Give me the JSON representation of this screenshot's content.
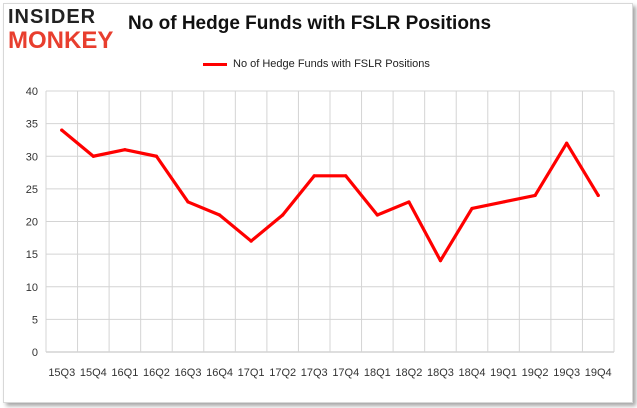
{
  "logo": {
    "top_text": "INSIDER",
    "bottom_text": "MONKEY"
  },
  "colors": {
    "series": "#ff0000",
    "logo_red": "#e83e2e",
    "grid": "#d4d4d4"
  },
  "chart_data": {
    "type": "line",
    "title": "No of Hedge Funds with FSLR Positions",
    "xlabel": "",
    "ylabel": "",
    "ylim": [
      0,
      40
    ],
    "yticks": [
      0,
      5,
      10,
      15,
      20,
      25,
      30,
      35,
      40
    ],
    "grid": true,
    "legend_position": "top-center",
    "categories": [
      "15Q3",
      "15Q4",
      "16Q1",
      "16Q2",
      "16Q3",
      "16Q4",
      "17Q1",
      "17Q2",
      "17Q3",
      "17Q4",
      "18Q1",
      "18Q2",
      "18Q3",
      "18Q4",
      "19Q1",
      "19Q2",
      "19Q3",
      "19Q4"
    ],
    "series": [
      {
        "name": "No of Hedge Funds with FSLR Positions",
        "values": [
          34,
          30,
          31,
          30,
          23,
          21,
          17,
          21,
          27,
          27,
          21,
          23,
          14,
          22,
          23,
          24,
          32,
          24
        ]
      }
    ]
  }
}
